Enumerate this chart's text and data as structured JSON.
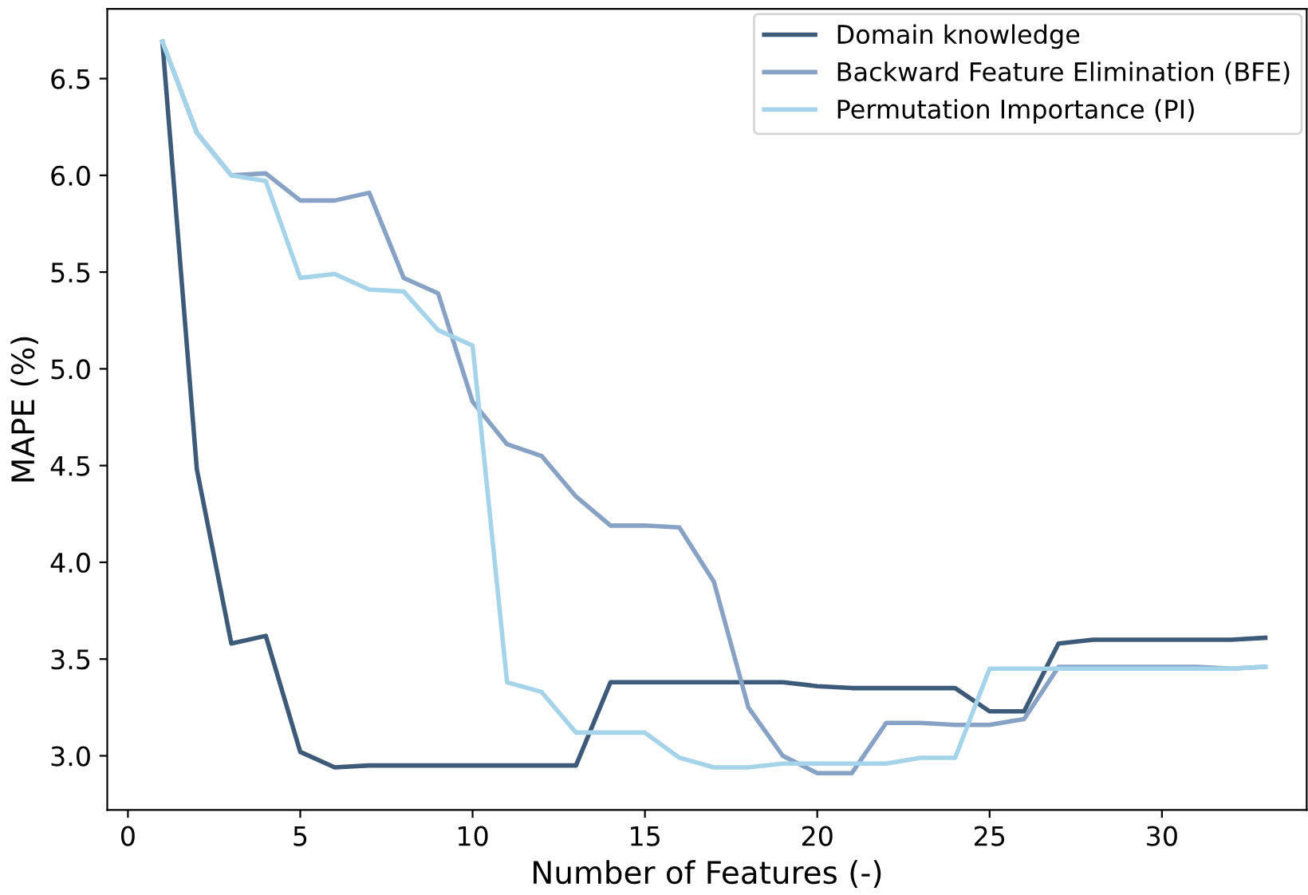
{
  "chart_data": {
    "type": "line",
    "xlabel": "Number of Features (-)",
    "ylabel": "MAPE (%)",
    "x": [
      1,
      2,
      3,
      4,
      5,
      6,
      7,
      8,
      9,
      10,
      11,
      12,
      13,
      14,
      15,
      16,
      17,
      18,
      19,
      20,
      21,
      22,
      23,
      24,
      25,
      26,
      27,
      28,
      29,
      30,
      31,
      32,
      33
    ],
    "series": [
      {
        "name": "Domain knowledge",
        "color": "#3d5a78",
        "values": [
          6.69,
          4.48,
          3.58,
          3.62,
          3.02,
          2.94,
          2.95,
          2.95,
          2.95,
          2.95,
          2.95,
          2.95,
          2.95,
          3.38,
          3.38,
          3.38,
          3.38,
          3.38,
          3.38,
          3.36,
          3.35,
          3.35,
          3.35,
          3.35,
          3.23,
          3.23,
          3.58,
          3.6,
          3.6,
          3.6,
          3.6,
          3.6,
          3.61
        ]
      },
      {
        "name": "Backward Feature Elimination (BFE)",
        "color": "#87a2c4",
        "values": [
          6.69,
          6.22,
          6.0,
          6.01,
          5.87,
          5.87,
          5.91,
          5.47,
          5.39,
          4.83,
          4.61,
          4.55,
          4.34,
          4.19,
          4.19,
          4.18,
          3.9,
          3.25,
          3.0,
          2.91,
          2.91,
          3.17,
          3.17,
          3.16,
          3.16,
          3.19,
          3.46,
          3.46,
          3.46,
          3.46,
          3.46,
          3.45,
          3.46
        ]
      },
      {
        "name": "Permutation Importance (PI)",
        "color": "#a5d3e9",
        "values": [
          6.69,
          6.22,
          6.0,
          5.97,
          5.47,
          5.49,
          5.41,
          5.4,
          5.2,
          5.12,
          3.38,
          3.33,
          3.12,
          3.12,
          3.12,
          2.99,
          2.94,
          2.94,
          2.96,
          2.96,
          2.96,
          2.96,
          2.99,
          2.99,
          3.45,
          3.45,
          3.45,
          3.45,
          3.45,
          3.45,
          3.45,
          3.45,
          3.46
        ]
      }
    ],
    "xlim": [
      -0.6,
      34.2
    ],
    "xticks": [
      0,
      5,
      10,
      15,
      20,
      25,
      30
    ],
    "ylim": [
      2.72,
      6.86
    ],
    "yticks": [
      {
        "value": 3.0,
        "label": "3.0"
      },
      {
        "value": 3.5,
        "label": "3.5"
      },
      {
        "value": 4.0,
        "label": "4.0"
      },
      {
        "value": 4.5,
        "label": "4.5"
      },
      {
        "value": 5.0,
        "label": "5.0"
      },
      {
        "value": 5.5,
        "label": "5.5"
      },
      {
        "value": 6.0,
        "label": "6.0"
      },
      {
        "value": 6.5,
        "label": "6.5"
      }
    ],
    "grid": false,
    "legend": "top right",
    "marker": "none",
    "line_style": "solid"
  }
}
